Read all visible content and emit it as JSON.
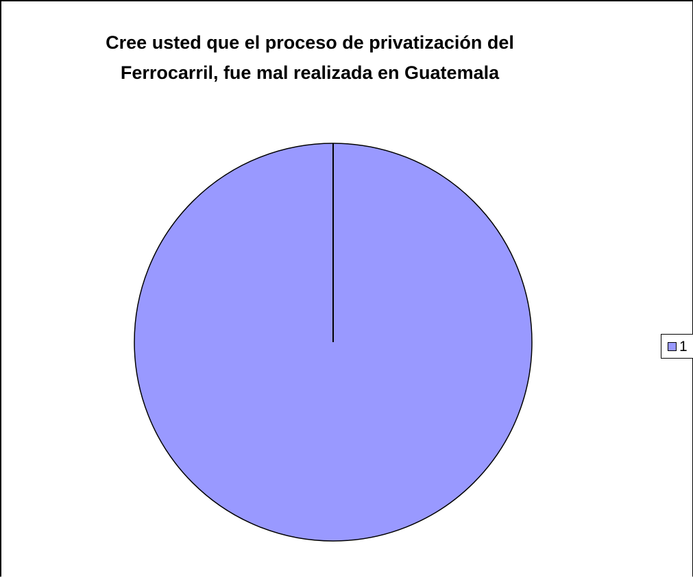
{
  "chart_data": {
    "type": "pie",
    "title": "Cree usted que el proceso de privatización del Ferrocarril, fue mal realizada en Guatemala",
    "slices": [
      {
        "label": "1",
        "value": 100,
        "color": "#9999ff"
      }
    ],
    "legend": {
      "position": "right",
      "entries": [
        "1"
      ]
    },
    "colors": {
      "slice_fill": "#9999ff",
      "outline": "#000000",
      "background": "#ffffff"
    }
  }
}
